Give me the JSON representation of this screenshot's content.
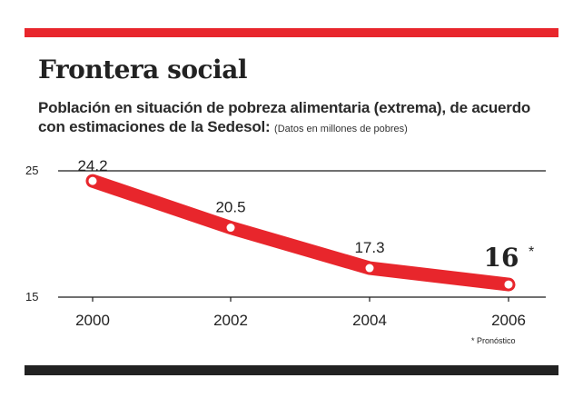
{
  "title": "Frontera social",
  "subtitle": "Población en situación de pobreza alimentaria (extrema), de acuerdo con estimaciones de la Sedesol:",
  "units_note": "(Datos en millones de pobres)",
  "footnote": "* Pronóstico",
  "colors": {
    "accent": "#e8262c",
    "dark": "#222222",
    "text": "#222222"
  },
  "chart_data": {
    "type": "line",
    "categories": [
      "2000",
      "2002",
      "2004",
      "2006"
    ],
    "values": [
      24.2,
      20.5,
      17.3,
      16
    ],
    "data_labels": [
      "24.2",
      "20.5",
      "17.3",
      "16"
    ],
    "forecast_marker": "*",
    "y_ticks": [
      "25",
      "15"
    ],
    "ylim": [
      15,
      25
    ],
    "title": "Frontera social",
    "xlabel": "",
    "ylabel": "",
    "grid": true
  }
}
